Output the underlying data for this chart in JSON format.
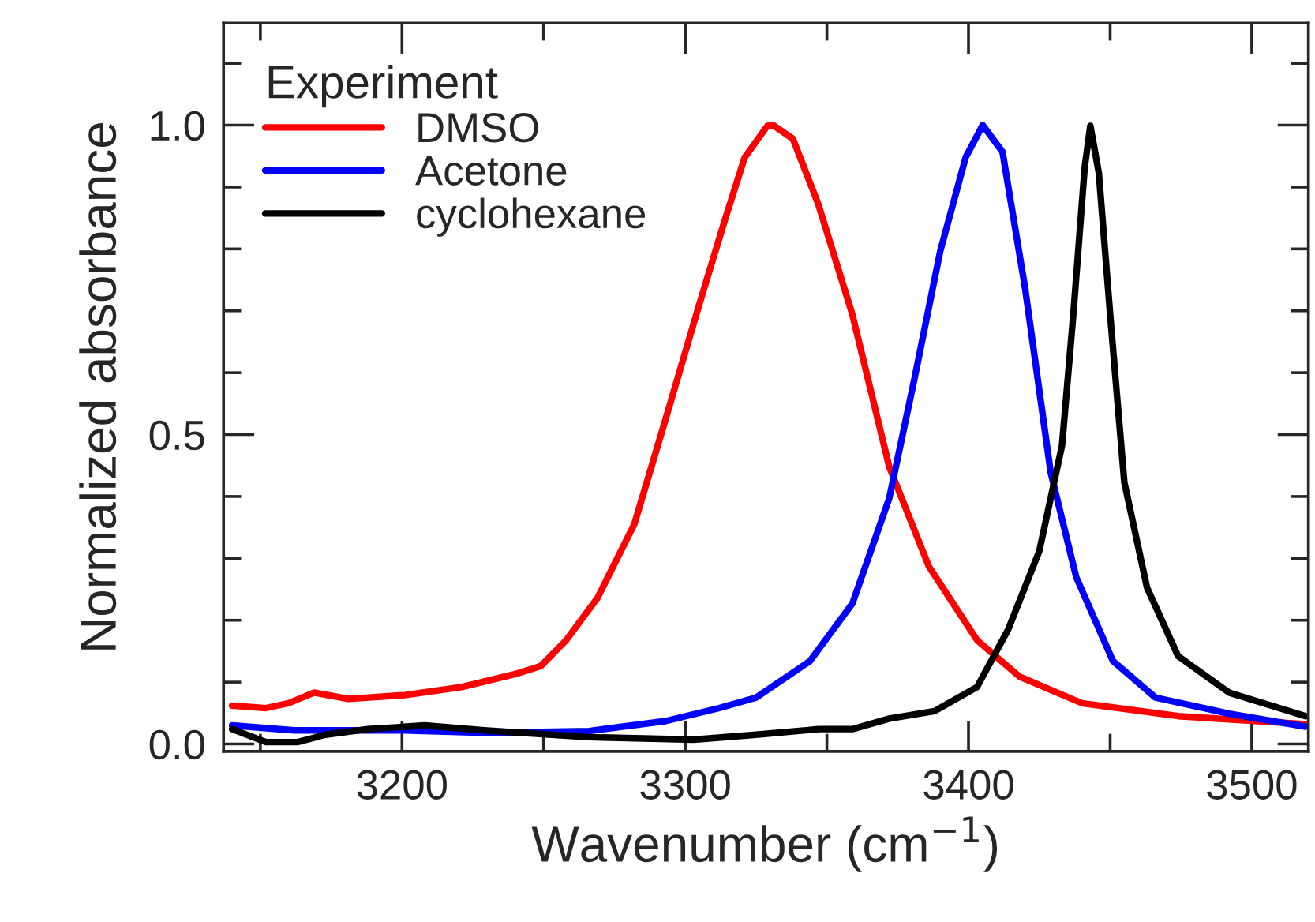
{
  "chart_data": {
    "type": "line",
    "xlabel": "Wavenumber (cm$^{−1}$)",
    "ylabel": "Normalized absorbance",
    "legend_title": "Experiment",
    "legend": "top left",
    "grid": false,
    "line_style": "solid",
    "xlim": [
      3137,
      3520
    ],
    "ylim": [
      -0.012,
      1.165
    ],
    "xticks": [
      {
        "value": 3150,
        "label": null
      },
      3200,
      {
        "value": 3250,
        "label": null
      },
      3300,
      {
        "value": 3350,
        "label": null
      },
      3400,
      {
        "value": 3450,
        "label": null
      },
      3500
    ],
    "yticks": [
      {
        "value": 0,
        "label": "0.0"
      },
      {
        "value": 0.1,
        "label": null
      },
      {
        "value": 0.2,
        "label": null
      },
      {
        "value": 0.3,
        "label": null
      },
      {
        "value": 0.4,
        "label": null
      },
      {
        "value": 0.5,
        "label": "0.5"
      },
      {
        "value": 0.6,
        "label": null
      },
      {
        "value": 0.7,
        "label": null
      },
      {
        "value": 0.8,
        "label": null
      },
      {
        "value": 0.9,
        "label": null
      },
      {
        "value": 1.0,
        "label": "1.0"
      },
      {
        "value": 1.1,
        "label": null
      }
    ],
    "series": [
      {
        "name": "DMSO",
        "color": "#ff0000",
        "x": [
          3140,
          3152,
          3160,
          3169,
          3181,
          3201,
          3221,
          3240,
          3249,
          3258,
          3269,
          3282,
          3293,
          3305,
          3314,
          3321,
          3329,
          3331,
          3338,
          3347,
          3359,
          3372,
          3386,
          3403,
          3418,
          3440,
          3474,
          3519
        ],
        "values": [
          0.062,
          0.058,
          0.066,
          0.083,
          0.073,
          0.079,
          0.092,
          0.113,
          0.126,
          0.168,
          0.236,
          0.355,
          0.524,
          0.711,
          0.847,
          0.948,
          0.999,
          1.0,
          0.978,
          0.872,
          0.694,
          0.448,
          0.287,
          0.168,
          0.109,
          0.066,
          0.045,
          0.032
        ]
      },
      {
        "name": "Acetone",
        "color": "#0000ff",
        "x": [
          3140,
          3162,
          3201,
          3229,
          3266,
          3293,
          3312,
          3325,
          3344,
          3359,
          3372,
          3381,
          3390,
          3399,
          3405,
          3412,
          3420,
          3429,
          3438,
          3451,
          3466,
          3492,
          3519
        ],
        "values": [
          0.03,
          0.022,
          0.022,
          0.018,
          0.021,
          0.037,
          0.058,
          0.075,
          0.134,
          0.227,
          0.397,
          0.592,
          0.796,
          0.948,
          1.0,
          0.957,
          0.736,
          0.439,
          0.27,
          0.134,
          0.075,
          0.049,
          0.028
        ]
      },
      {
        "name": "cyclohexane",
        "color": "#000000",
        "x": [
          3140,
          3152,
          3163,
          3173,
          3188,
          3208,
          3229,
          3266,
          3303,
          3325,
          3347,
          3359,
          3372,
          3388,
          3403,
          3414,
          3425,
          3433,
          3437,
          3441,
          3443,
          3446,
          3450,
          3455,
          3463,
          3474,
          3492,
          3519
        ],
        "values": [
          0.024,
          0.003,
          0.003,
          0.015,
          0.024,
          0.03,
          0.022,
          0.011,
          0.007,
          0.015,
          0.024,
          0.024,
          0.041,
          0.053,
          0.092,
          0.185,
          0.312,
          0.482,
          0.694,
          0.931,
          0.999,
          0.923,
          0.694,
          0.423,
          0.253,
          0.142,
          0.083,
          0.045
        ]
      }
    ]
  }
}
